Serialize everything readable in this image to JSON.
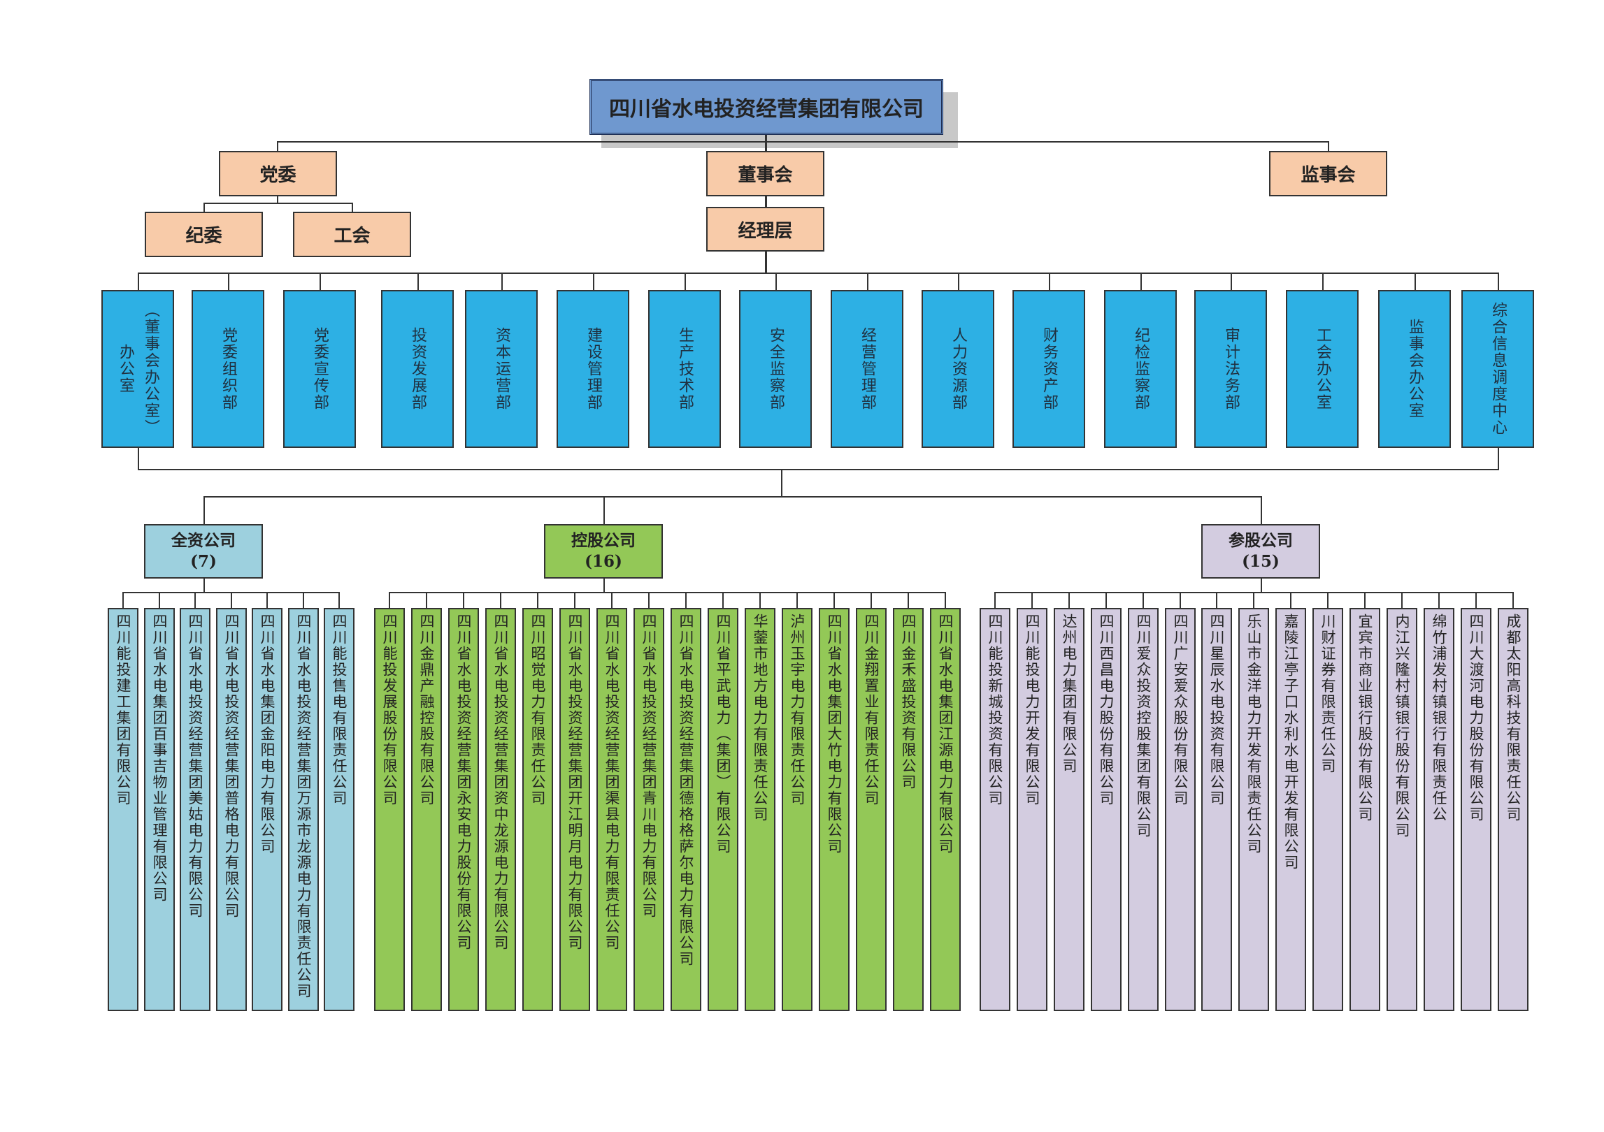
{
  "root": {
    "title": "四川省水电投资经营集团有限公司",
    "color": "#6f98cf"
  },
  "governance": {
    "party_committee": "党委",
    "discipline_committee": "纪委",
    "trade_union": "工会",
    "board": "董事会",
    "supervisory_board": "监事会",
    "management": "经理层",
    "color": "#f8cba9"
  },
  "departments": {
    "color": "#2db0e4",
    "items": [
      {
        "label": "办公室",
        "sub": "（董事会办公室）"
      },
      {
        "label": "党委组织部"
      },
      {
        "label": "党委宣传部"
      },
      {
        "label": "投资发展部"
      },
      {
        "label": "资本运营部"
      },
      {
        "label": "建设管理部"
      },
      {
        "label": "生产技术部"
      },
      {
        "label": "安全监察部"
      },
      {
        "label": "经营管理部"
      },
      {
        "label": "人力资源部"
      },
      {
        "label": "财务资产部"
      },
      {
        "label": "纪检监察部"
      },
      {
        "label": "审计法务部"
      },
      {
        "label": "工会办公室"
      },
      {
        "label": "监事会办公室"
      },
      {
        "label": "综合信息调度中心"
      }
    ]
  },
  "groups": [
    {
      "name": "全资公司",
      "count": "(7)",
      "color": "#9dd0de",
      "companies": [
        "四川能投建工集团有限公司",
        "四川省水电集团百事吉物业管理有限公司",
        "四川省水电投资经营集团美姑电力有限公司",
        "四川省水电投资经营集团普格电力有限公司",
        "四川省水电集团金阳电力有限公司",
        "四川省水电投资经营集团万源市龙源电力有限责任公司",
        "四川能投售电有限责任公司"
      ]
    },
    {
      "name": "控股公司",
      "count": "(16)",
      "color": "#93c857",
      "companies": [
        "四川能投发展股份有限公司",
        "四川金鼎产融控股有限公司",
        "四川省水电投资经营集团永安电力股份有限公司",
        "四川省水电投资经营集团资中龙源电力有限公司",
        "四川昭觉电力有限责任公司",
        "四川省水电投资经营集团开江明月电力有限公司",
        "四川省水电投资经营集团渠县电力有限责任公司",
        "四川省水电投资经营集团青川电力有限公司",
        "四川省水电投资经营集团德格格萨尔电力有限公司",
        "四川省平武电力（集团）有限公司",
        "华蓥市地方电力有限责任公司",
        "泸州玉宇电力有限责任公司",
        "四川省水电集团大竹电力有限公司",
        "四川金翔置业有限责任公司",
        "四川金禾盛投资有限公司",
        "四川省水电集团江源电力有限公司"
      ]
    },
    {
      "name": "参股公司",
      "count": "(15)",
      "color": "#d3cce0",
      "companies": [
        "四川能投新城投资有限公司",
        "四川能投电力开发有限公司",
        "达州电力集团有限公司",
        "四川西昌电力股份有限公司",
        "四川爱众投资控股集团有限公司",
        "四川广安爱众股份有限公司",
        "四川星辰水电投资有限公司",
        "乐山市金洋电力开发有限责任公司",
        "嘉陵江亭子口水利水电开发有限公司",
        "川财证券有限责任公司",
        "宜宾市商业银行股份有限公司",
        "内江兴隆村镇银行股份有限公司",
        "绵竹浦发村镇银行有限责任公",
        "四川大渡河电力股份有限公司",
        "成都太阳高科技有限责任公司"
      ]
    }
  ]
}
